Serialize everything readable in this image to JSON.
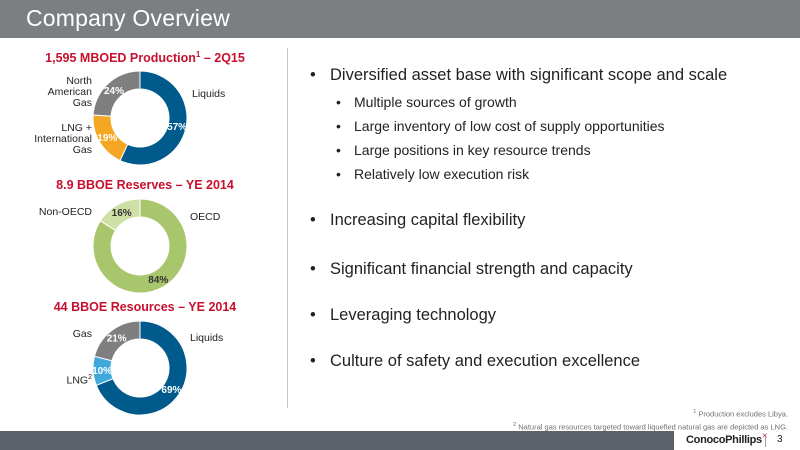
{
  "slide": {
    "title": "Company Overview",
    "page_number": "3",
    "brand": "ConocoPhillips"
  },
  "colors": {
    "navy": "#005a8c",
    "orange": "#f5a623",
    "gray": "#7f7f7f",
    "light_green": "#a8c66c",
    "pale_green": "#cfe0a6",
    "light_blue": "#3fa9dc",
    "red": "#c8102e"
  },
  "charts": {
    "production": {
      "title": "1,595 MBOED Production",
      "title_sup": "1",
      "title_suffix": " – 2Q15",
      "segments": [
        {
          "name": "Liquids",
          "value": 57,
          "pct": "57%",
          "color": "#005a8c"
        },
        {
          "name": "LNG + International Gas",
          "value": 19,
          "pct": "19%",
          "color": "#f5a623"
        },
        {
          "name": "North American Gas",
          "value": 24,
          "pct": "24%",
          "color": "#7f7f7f"
        }
      ],
      "labels": {
        "liquids": "Liquids",
        "lng_1": "LNG +",
        "lng_2": "International",
        "lng_3": "Gas",
        "nag_1": "North",
        "nag_2": "American",
        "nag_3": "Gas"
      }
    },
    "reserves": {
      "title": "8.9 BBOE Reserves – YE 2014",
      "segments": [
        {
          "name": "OECD",
          "value": 84,
          "pct": "84%",
          "color": "#a8c66c"
        },
        {
          "name": "Non-OECD",
          "value": 16,
          "pct": "16%",
          "color": "#cfe0a6"
        }
      ],
      "labels": {
        "oecd": "OECD",
        "non_oecd": "Non-OECD"
      }
    },
    "resources": {
      "title": "44 BBOE Resources – YE 2014",
      "segments": [
        {
          "name": "Liquids",
          "value": 69,
          "pct": "69%",
          "color": "#005a8c"
        },
        {
          "name": "LNG",
          "value": 10,
          "pct": "10%",
          "color": "#3fa9dc"
        },
        {
          "name": "Gas",
          "value": 21,
          "pct": "21%",
          "color": "#7f7f7f"
        }
      ],
      "labels": {
        "liquids": "Liquids",
        "lng": "LNG",
        "lng_sup": "2",
        "gas": "Gas"
      }
    }
  },
  "bullets": {
    "b1": "Diversified asset base with significant scope and scale",
    "b1_sub": [
      "Multiple sources of growth",
      "Large inventory of low cost of supply opportunities",
      "Large positions in key resource trends",
      "Relatively low execution risk"
    ],
    "b2": "Increasing capital flexibility",
    "b3": "Significant financial strength and capacity",
    "b4": "Leveraging technology",
    "b5": "Culture of safety and execution excellence"
  },
  "footnotes": {
    "f1_num": "1",
    "f1": " Production excludes Libya.",
    "f2_num": "2",
    "f2": " Natural gas resources targeted toward liquefied natural gas are depicted as LNG."
  }
}
